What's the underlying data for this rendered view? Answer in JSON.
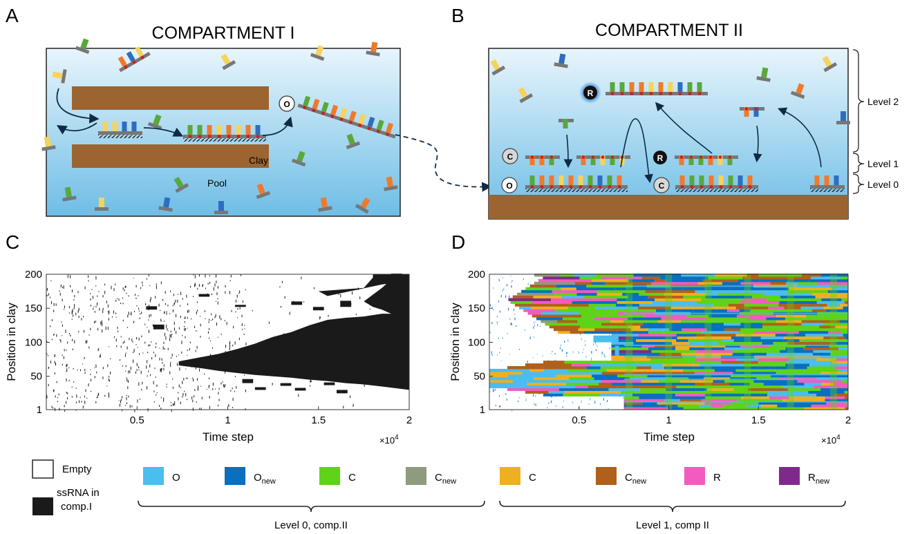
{
  "panel_a": {
    "letter": "A",
    "title": "COMPARTMENT I",
    "clay_label": "Clay",
    "pool_label": "Pool",
    "marker_o": "O"
  },
  "panel_b": {
    "letter": "B",
    "title": "COMPARTMENT II",
    "marker_r": "R",
    "marker_c": "C",
    "marker_o": "O",
    "levels": [
      "Level 2",
      "Level 1",
      "Level 0"
    ]
  },
  "panel_c": {
    "letter": "C",
    "ylabel": "Position in clay",
    "xlabel": "Time step",
    "yticks": [
      "1",
      "50",
      "100",
      "150",
      "200"
    ],
    "xticks": [
      "0.5",
      "1",
      "1.5",
      "2"
    ],
    "exponent_base": "×10",
    "exponent_power": "4"
  },
  "panel_d": {
    "letter": "D",
    "ylabel": "Position in clay",
    "xlabel": "Time step",
    "yticks": [
      "1",
      "50",
      "100",
      "150",
      "200"
    ],
    "xticks": [
      "0.5",
      "1",
      "1.5",
      "2"
    ],
    "exponent_base": "×10",
    "exponent_power": "4"
  },
  "legend": {
    "empty": "Empty",
    "ssrna_line1": "ssRNA in",
    "ssrna_line2": "comp.I",
    "empty_color": "#ffffff",
    "ssrna_color": "#1a1a1a",
    "items": [
      {
        "label": "O",
        "sub": "",
        "color": "#4bbdee"
      },
      {
        "label": "O",
        "sub": "new",
        "color": "#0a6fbf"
      },
      {
        "label": "C",
        "sub": "",
        "color": "#5fd318"
      },
      {
        "label": "C",
        "sub": "new",
        "color": "#8f9a7e"
      },
      {
        "label": "C",
        "sub": "",
        "color": "#eeb020"
      },
      {
        "label": "C",
        "sub": "new",
        "color": "#b0601a"
      },
      {
        "label": "R",
        "sub": "",
        "color": "#f25bbf"
      },
      {
        "label": "R",
        "sub": "new",
        "color": "#7e2a8c"
      }
    ],
    "group1": "Level 0, comp.II",
    "group2": "Level 1, comp II"
  },
  "colors": {
    "water_top": "#e8f5fc",
    "water_bottom": "#6ebde6",
    "clay": "#9b6431",
    "strand": "#777777",
    "nuc_yellow": "#f6d35a",
    "nuc_orange": "#ee7a2c",
    "nuc_blue": "#2e6dc0",
    "nuc_green": "#58a83c"
  }
}
